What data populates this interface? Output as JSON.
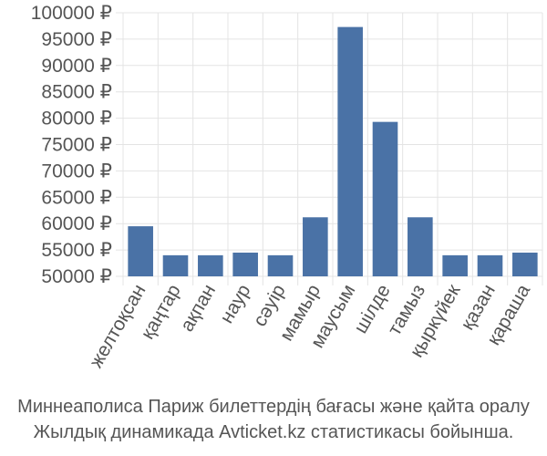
{
  "chart_data": {
    "type": "bar",
    "categories": [
      "желтоқсан",
      "қаңтар",
      "ақпан",
      "наур",
      "сәуір",
      "мамыр",
      "маусым",
      "шілде",
      "тамыз",
      "қыркүйек",
      "қазан",
      "қараша"
    ],
    "values": [
      59500,
      54000,
      54000,
      54500,
      54000,
      61200,
      97300,
      79300,
      61200,
      54000,
      54000,
      54500
    ],
    "ylim": [
      50000,
      100000
    ],
    "yticks": [
      50000,
      55000,
      60000,
      65000,
      70000,
      75000,
      80000,
      85000,
      90000,
      95000,
      100000
    ],
    "currency": "₽",
    "bar_color": "#4a72a6",
    "grid": true
  },
  "caption": {
    "line1": "Миннеаполиса Париж билеттердің бағасы және қайта оралу",
    "line2": "Жылдық динамикада Avticket.kz статистикасы бойынша."
  }
}
